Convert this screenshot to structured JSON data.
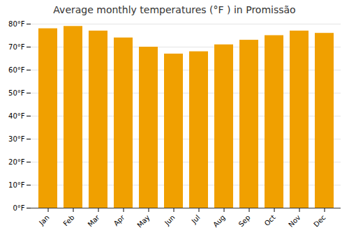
{
  "chart_data": {
    "type": "bar",
    "title": "Average monthly temperatures (°F ) in Promissão",
    "categories": [
      "Jan",
      "Feb",
      "Mar",
      "Apr",
      "May",
      "Jun",
      "Jul",
      "Aug",
      "Sep",
      "Oct",
      "Nov",
      "Dec"
    ],
    "values": [
      78,
      79,
      77,
      74,
      70,
      67,
      68,
      71,
      73,
      75,
      77,
      76
    ],
    "color": "#F0A000",
    "ylim": [
      0,
      80
    ],
    "yticks": [
      {
        "value": 0,
        "label": "0°F"
      },
      {
        "value": 10,
        "label": "10°F"
      },
      {
        "value": 20,
        "label": "20°F"
      },
      {
        "value": 30,
        "label": "30°F"
      },
      {
        "value": 40,
        "label": "40°F"
      },
      {
        "value": 50,
        "label": "50°F"
      },
      {
        "value": 60,
        "label": "60°F"
      },
      {
        "value": 70,
        "label": "70°F"
      },
      {
        "value": 80,
        "label": "80°F"
      }
    ],
    "grid": true
  }
}
